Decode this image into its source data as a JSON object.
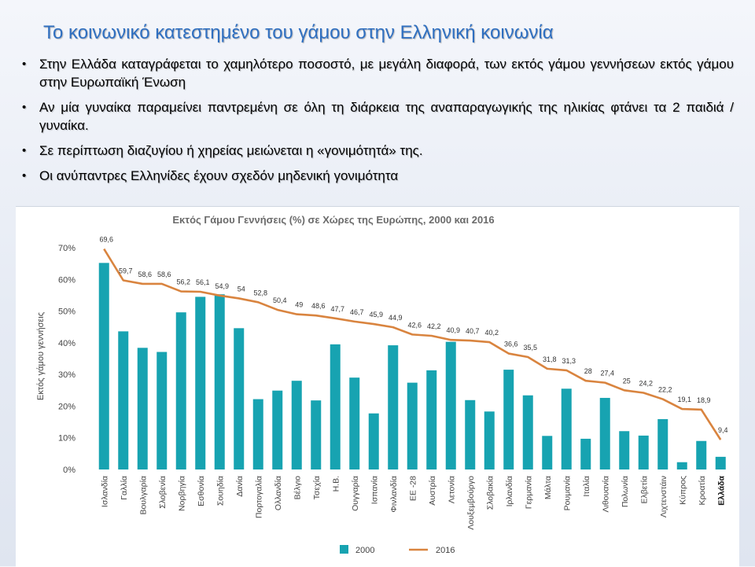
{
  "slide": {
    "title": "Το κοινωνικό κατεστημένο του γάμου στην Ελληνική κοινωνία",
    "bullets": [
      "Στην Ελλάδα καταγράφεται το χαμηλότερο ποσοστό, με μεγάλη διαφορά, των εκτός γάμου γεννήσεων εκτός γάμου στην Ευρωπαϊκή Ένωση",
      "Αν μία γυναίκα παραμείνει παντρεμένη σε όλη τη διάρκεια της αναπαραγωγικής της ηλικίας φτάνει τα 2 παιδιά /γυναίκα.",
      "Σε περίπτωση διαζυγίου ή χηρείας μειώνεται η «γονιμότητά» της.",
      "Οι ανύπαντρες Ελληνίδες έχουν σχεδόν μηδενική γονιμότητα"
    ],
    "bullet_symbol": "•"
  },
  "chart_data": {
    "type": "bar",
    "title": "Εκτός Γάμου Γεννήσεις (%) σε Χώρες της Ευρώπης, 2000 και 2016",
    "xlabel": "",
    "ylabel": "Εκτός γάμου γεννήσεις",
    "ylim": [
      0,
      70
    ],
    "yticks": [
      "0%",
      "10%",
      "20%",
      "30%",
      "40%",
      "50%",
      "60%",
      "70%"
    ],
    "grid": false,
    "legend_position": "bottom",
    "categories": [
      "Ισλανδία",
      "Γαλλία",
      "Βουλγαρία",
      "Σλοβενία",
      "Νορβηγία",
      "Εσθονία",
      "Σουηδία",
      "Δανία",
      "Πορτογαλία",
      "Ολλανδία",
      "Βέλγιο",
      "Τσεχία",
      "Η.Β.",
      "Ουγγαρία",
      "Ισπανία",
      "Φινλανδία",
      "ΕΕ -28",
      "Αυστρία",
      "Λετονία",
      "Λουξεμβούργο",
      "Σλοβακία",
      "Ιρλανδία",
      "Γερμανία",
      "Μάλτα",
      "Ρουμανία",
      "Ιταλία",
      "Λιθουανία",
      "Πολωνία",
      "Ελβετία",
      "Λιχτενστάιν",
      "Κύπρος",
      "Κροατία",
      "Ελλάδα"
    ],
    "highlight_category": "Ελλάδα",
    "series": [
      {
        "name": "2000",
        "type": "bar",
        "color": "#17a3b1",
        "values": [
          65.2,
          43.6,
          38.4,
          37.1,
          49.6,
          54.5,
          55.3,
          44.6,
          22.2,
          24.9,
          28.0,
          21.8,
          39.5,
          29.0,
          17.7,
          39.2,
          27.4,
          31.3,
          40.3,
          21.9,
          18.3,
          31.5,
          23.4,
          10.6,
          25.5,
          9.7,
          22.6,
          12.1,
          10.7,
          15.9,
          2.3,
          9.0,
          4.0
        ]
      },
      {
        "name": "2016",
        "type": "line",
        "color": "#d9843f",
        "values": [
          69.6,
          59.7,
          58.6,
          58.6,
          56.2,
          56.1,
          54.9,
          54,
          52.8,
          50.4,
          49,
          48.6,
          47.7,
          46.7,
          45.9,
          44.9,
          42.6,
          42.2,
          40.9,
          40.7,
          40.2,
          36.6,
          35.5,
          31.8,
          31.3,
          28,
          27.4,
          25,
          24.2,
          22.2,
          19.1,
          18.9,
          9.4
        ],
        "labels": [
          "69,6",
          "59,7",
          "58,6",
          "58,6",
          "56,2",
          "56,1",
          "54,9",
          "54",
          "52,8",
          "50,4",
          "49",
          "48,6",
          "47,7",
          "46,7",
          "45,9",
          "44,9",
          "42,6",
          "42,2",
          "40,9",
          "40,7",
          "40,2",
          "36,6",
          "35,5",
          "31,8",
          "31,3",
          "28",
          "27,4",
          "25",
          "24,2",
          "22,2",
          "19,1",
          "18,9",
          "9,4"
        ]
      }
    ]
  }
}
